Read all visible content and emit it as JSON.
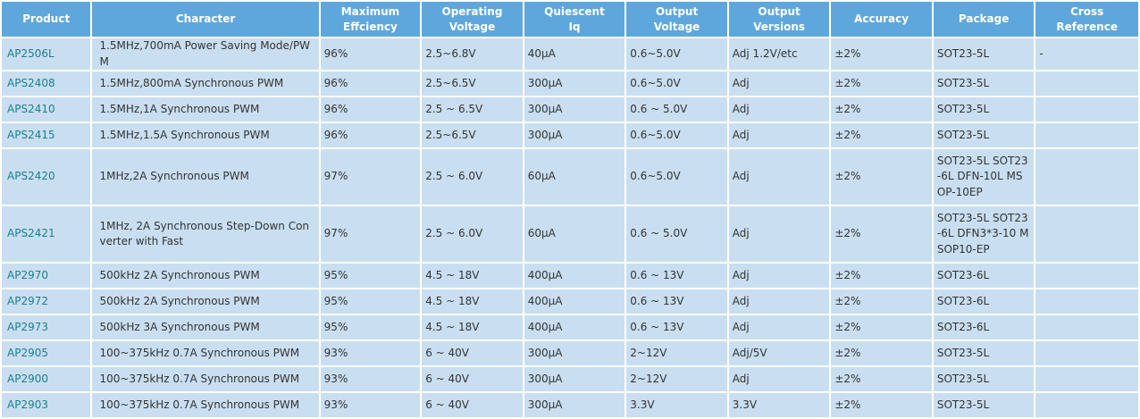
{
  "table": {
    "headers": [
      "Product",
      "Character",
      "Maximum\nEffciency",
      "Operating\nVoltage",
      "Quiescent\nIq",
      "Output\nVoltage",
      "Output\nVersions",
      "Accuracy",
      "Package",
      "Cross\nReference"
    ],
    "rows": [
      {
        "product": "AP2506L",
        "character": "1.5MHz,700mA Power Saving Mode/PWM",
        "max_efficiency": "96%",
        "operating_voltage": "2.5~6.8V",
        "quiescent_iq": "40μA",
        "output_voltage": "0.6~5.0V",
        "output_versions": "Adj 1.2V/etc",
        "accuracy": "±2%",
        "package": "SOT23-5L",
        "cross_reference": "-"
      },
      {
        "product": "APS2408",
        "character": "1.5MHz,800mA Synchronous PWM",
        "max_efficiency": "96%",
        "operating_voltage": "2.5~6.5V",
        "quiescent_iq": "300μA",
        "output_voltage": "0.6~5.0V",
        "output_versions": "Adj",
        "accuracy": "±2%",
        "package": "SOT23-5L",
        "cross_reference": ""
      },
      {
        "product": "APS2410",
        "character": "1.5MHz,1A Synchronous PWM",
        "max_efficiency": "96%",
        "operating_voltage": "2.5 ~ 6.5V",
        "quiescent_iq": "300μA",
        "output_voltage": "0.6 ~ 5.0V",
        "output_versions": "Adj",
        "accuracy": "±2%",
        "package": "SOT23-5L",
        "cross_reference": ""
      },
      {
        "product": "APS2415",
        "character": "1.5MHz,1.5A Synchronous PWM",
        "max_efficiency": "96%",
        "operating_voltage": "2.5~6.5V",
        "quiescent_iq": "300μA",
        "output_voltage": "0.6~5.0V",
        "output_versions": "Adj",
        "accuracy": "±2%",
        "package": "SOT23-5L",
        "cross_reference": ""
      },
      {
        "product": "APS2420",
        "character": "1MHz,2A Synchronous PWM",
        "max_efficiency": "97%",
        "operating_voltage": "2.5 ~ 6.0V",
        "quiescent_iq": "60μA",
        "output_voltage": "0.6~5.0V",
        "output_versions": "Adj",
        "accuracy": "±2%",
        "package": "SOT23-5L SOT23-6L DFN-10L MSOP-10EP",
        "cross_reference": ""
      },
      {
        "product": "APS2421",
        "character": "1MHz, 2A Synchronous Step-Down Converter with Fast",
        "max_efficiency": "97%",
        "operating_voltage": "2.5 ~ 6.0V",
        "quiescent_iq": "60μA",
        "output_voltage": "0.6 ~ 5.0V",
        "output_versions": "Adj",
        "accuracy": "±2%",
        "package": "SOT23-5L SOT23-6L DFN3*3-10 MSOP10-EP",
        "cross_reference": ""
      },
      {
        "product": "AP2970",
        "character": "500kHz 2A Synchronous PWM",
        "max_efficiency": "95%",
        "operating_voltage": "4.5 ~ 18V",
        "quiescent_iq": "400μA",
        "output_voltage": "0.6 ~ 13V",
        "output_versions": "Adj",
        "accuracy": "±2%",
        "package": "SOT23-6L",
        "cross_reference": ""
      },
      {
        "product": "AP2972",
        "character": "500kHz 2A Synchronous PWM",
        "max_efficiency": "95%",
        "operating_voltage": "4.5 ~ 18V",
        "quiescent_iq": "400μA",
        "output_voltage": "0.6 ~ 13V",
        "output_versions": "Adj",
        "accuracy": "±2%",
        "package": "SOT23-6L",
        "cross_reference": ""
      },
      {
        "product": "AP2973",
        "character": "500kHz 3A Synchronous PWM",
        "max_efficiency": "95%",
        "operating_voltage": "4.5 ~ 18V",
        "quiescent_iq": "400μA",
        "output_voltage": "0.6 ~ 13V",
        "output_versions": "Adj",
        "accuracy": "±2%",
        "package": "SOT23-6L",
        "cross_reference": ""
      },
      {
        "product": "AP2905",
        "character": "100~375kHz 0.7A Synchronous PWM",
        "max_efficiency": "93%",
        "operating_voltage": "6 ~ 40V",
        "quiescent_iq": "300μA",
        "output_voltage": "2~12V",
        "output_versions": "Adj/5V",
        "accuracy": "±2%",
        "package": "SOT23-5L",
        "cross_reference": ""
      },
      {
        "product": "AP2900",
        "character": "100~375kHz 0.7A Synchronous PWM",
        "max_efficiency": "93%",
        "operating_voltage": "6 ~ 40V",
        "quiescent_iq": "300μA",
        "output_voltage": "2~12V",
        "output_versions": "Adj",
        "accuracy": "±2%",
        "package": "SOT23-5L",
        "cross_reference": ""
      },
      {
        "product": "AP2903",
        "character": "100~375kHz 0.7A Synchronous PWM",
        "max_efficiency": "93%",
        "operating_voltage": "6 ~ 40V",
        "quiescent_iq": "300μA",
        "output_voltage": "3.3V",
        "output_versions": "3.3V",
        "accuracy": "±2%",
        "package": "SOT23-5L",
        "cross_reference": ""
      }
    ]
  }
}
